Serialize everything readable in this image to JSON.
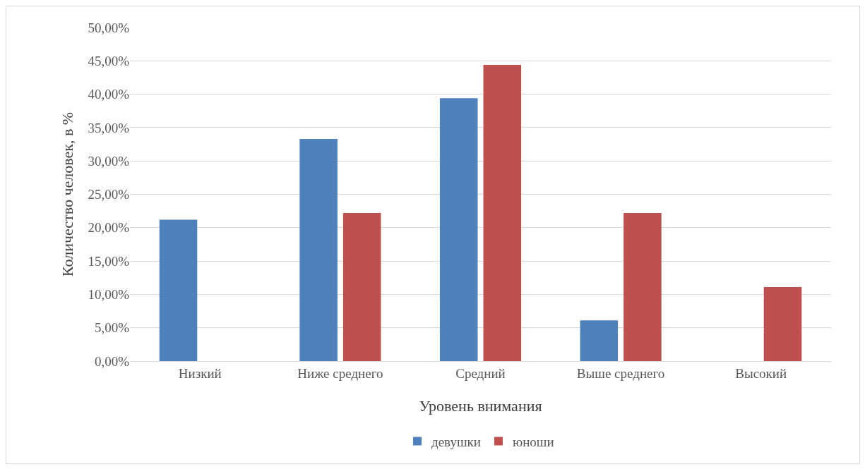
{
  "chart_data": {
    "type": "bar",
    "xlabel": "Уровень внимания",
    "ylabel": "Количество человек, в %",
    "categories": [
      "Низкий",
      "Ниже среднего",
      "Средний",
      "Выше среднего",
      "Высокий"
    ],
    "series": [
      {
        "name": "девушки",
        "color": "#4f81bd",
        "values": [
          21.2,
          33.3,
          39.4,
          6.1,
          0
        ]
      },
      {
        "name": "юноши",
        "color": "#c0504d",
        "values": [
          0,
          22.2,
          44.4,
          22.2,
          11.1
        ]
      }
    ],
    "ylim": [
      0,
      50
    ],
    "yticks": [
      {
        "value": 0,
        "label": "0,00%"
      },
      {
        "value": 5,
        "label": "5,00%"
      },
      {
        "value": 10,
        "label": "10,00%"
      },
      {
        "value": 15,
        "label": "15,00%"
      },
      {
        "value": 20,
        "label": "20,00%"
      },
      {
        "value": 25,
        "label": "25,00%"
      },
      {
        "value": 30,
        "label": "30,00%"
      },
      {
        "value": 35,
        "label": "35,00%"
      },
      {
        "value": 40,
        "label": "40,00%"
      },
      {
        "value": 45,
        "label": "45,00%"
      },
      {
        "value": 50,
        "label": "50,00%"
      }
    ],
    "grid": "y",
    "legend": "bottom"
  }
}
